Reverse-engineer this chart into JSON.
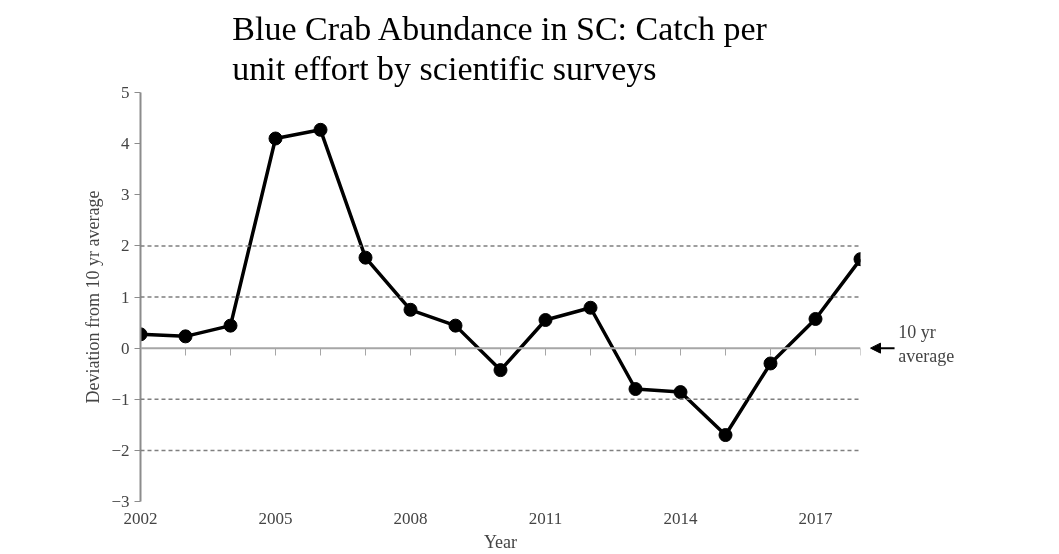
{
  "chart_data": {
    "type": "line",
    "title": "Blue Crab Abundance in SC: Catch per unit effort by scientific surveys",
    "xlabel": "Year",
    "ylabel": "Deviation from 10 yr average",
    "x": [
      2002,
      2003,
      2004,
      2005,
      2006,
      2007,
      2008,
      2009,
      2010,
      2011,
      2012,
      2013,
      2014,
      2015,
      2016,
      2017,
      2018
    ],
    "series": [
      {
        "color": "#000000",
        "values": [
          0.27,
          0.23,
          0.44,
          4.1,
          4.27,
          1.77,
          0.75,
          0.44,
          -0.43,
          0.55,
          0.79,
          -0.8,
          -0.86,
          -1.7,
          -0.3,
          0.57,
          1.74
        ]
      }
    ],
    "xlim": [
      2002,
      2018
    ],
    "xticks": [
      2002,
      2005,
      2008,
      2011,
      2014,
      2017
    ],
    "ylim": [
      -3,
      5
    ],
    "yticks": [
      -3,
      -2,
      -1,
      0,
      1,
      2,
      3,
      4,
      5
    ],
    "ref_lines": [
      {
        "axis": "y",
        "value": 0,
        "label": "10 yr average",
        "color": "#a6a6a6",
        "line_style": "solid"
      },
      {
        "axis": "y",
        "value": 2,
        "color": "#7f7f7f",
        "line_style": "dashed"
      },
      {
        "axis": "y",
        "value": 1,
        "color": "#7f7f7f",
        "line_style": "dashed"
      },
      {
        "axis": "y",
        "value": -1,
        "color": "#7f7f7f",
        "line_style": "dashed"
      },
      {
        "axis": "y",
        "value": -2,
        "color": "#7f7f7f",
        "line_style": "dashed"
      }
    ],
    "marker": "circle",
    "line_style": "solid",
    "grid": false
  }
}
